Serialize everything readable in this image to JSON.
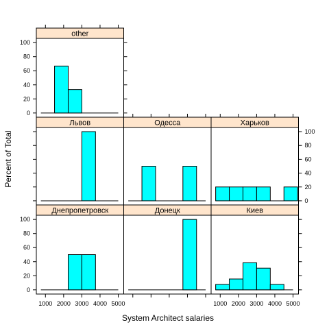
{
  "chart_data": {
    "type": "bar",
    "layout": "trellis histogram, 3 columns x 3 rows",
    "xlabel": "System Architect salaries",
    "ylabel": "Percent of Total",
    "xlim": [
      500,
      5300
    ],
    "ylim": [
      -6,
      106
    ],
    "x_ticks": [
      1000,
      2000,
      3000,
      4000,
      5000
    ],
    "y_ticks": [
      0,
      20,
      40,
      60,
      80,
      100
    ],
    "bin_edges": [
      750,
      1500,
      2250,
      3000,
      3750
    ],
    "bin_width": 750,
    "colors": {
      "bar": "#00ffff",
      "strip": "#ffe5cc"
    },
    "panels": [
      {
        "name": "other",
        "values": [
          0,
          66.7,
          33.3,
          0,
          0
        ]
      },
      {
        "name": "Львов",
        "values": [
          0,
          0,
          0,
          100,
          0
        ]
      },
      {
        "name": "Одесса",
        "values": [
          0,
          50,
          0,
          0,
          50
        ]
      },
      {
        "name": "Харьков",
        "values": [
          20,
          20,
          20,
          20,
          20
        ],
        "bin_starts": [
          750,
          1500,
          2250,
          3000,
          4500
        ]
      },
      {
        "name": "Днепропетровск",
        "values": [
          0,
          0,
          50,
          50,
          0
        ]
      },
      {
        "name": "Донецк",
        "values": [
          0,
          0,
          0,
          0,
          100
        ]
      },
      {
        "name": "Киев",
        "values": [
          7.7,
          15.4,
          38.5,
          30.8,
          7.7
        ]
      }
    ]
  }
}
